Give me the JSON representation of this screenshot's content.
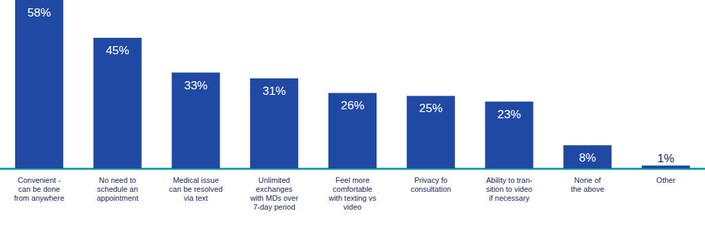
{
  "chart_data": {
    "type": "bar",
    "categories": [
      "Convenient -\ncan be done\nfrom anywhere",
      "No need to\nschedule an\nappointment",
      "Medical issue\ncan be resolved\nvia text",
      "Unlimited\nexchanges\nwith MDs over\n7-day period",
      "Feel more\ncomfortable\nwith texting vs\nvideo",
      "Privacy fo\nconsultation",
      "Ability to tran-\nsition to video\nif necessary",
      "None of\nthe above",
      "Other"
    ],
    "values": [
      58,
      45,
      33,
      31,
      26,
      25,
      23,
      8,
      1
    ],
    "value_labels": [
      "58%",
      "45%",
      "33%",
      "31%",
      "26%",
      "25%",
      "23%",
      "8%",
      "1%"
    ],
    "color": "#1f49a3",
    "ylim": [
      0,
      58
    ],
    "grid": false,
    "data_labels": true,
    "tick_labels": "x"
  }
}
